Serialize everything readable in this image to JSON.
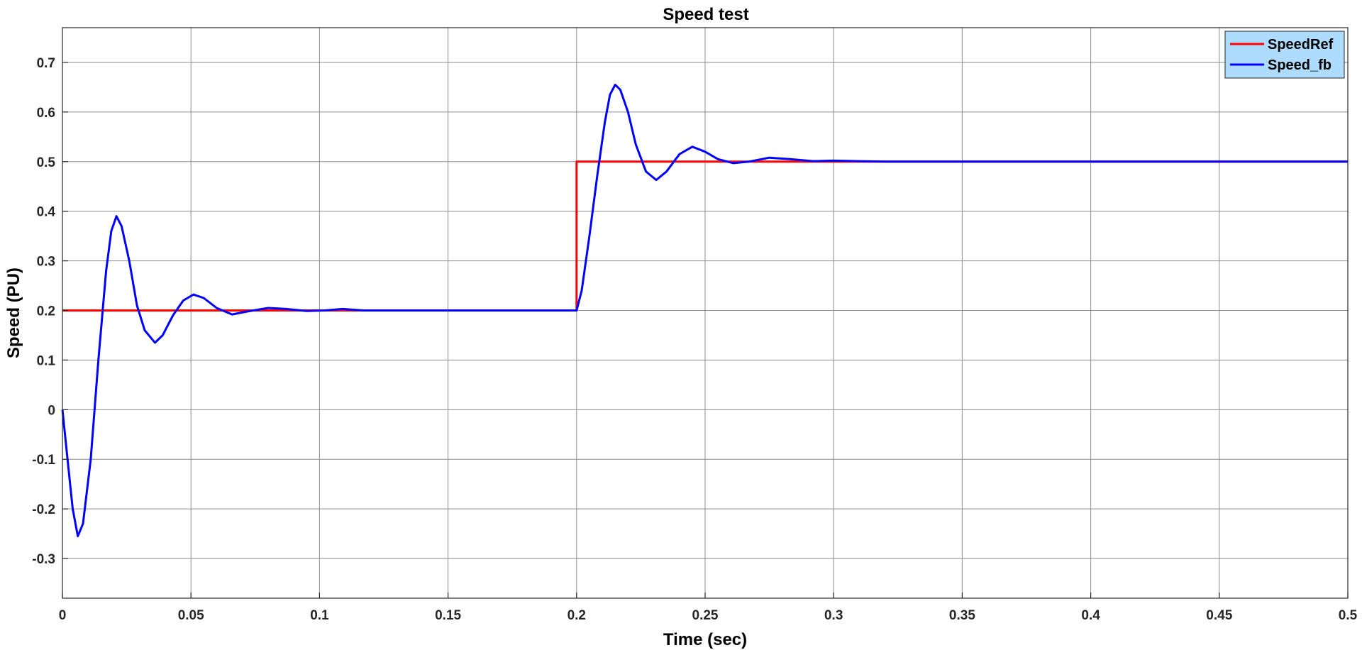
{
  "chart_data": {
    "type": "line",
    "title": "Speed test",
    "xlabel": "Time (sec)",
    "ylabel": "Speed (PU)",
    "xlim": [
      0,
      0.5
    ],
    "ylim": [
      -0.38,
      0.77
    ],
    "grid": true,
    "legend_position": "top-right",
    "x_ticks": [
      0,
      0.05,
      0.1,
      0.15,
      0.2,
      0.25,
      0.3,
      0.35,
      0.4,
      0.45,
      0.5
    ],
    "x_tick_labels": [
      "0",
      "0.05",
      "0.1",
      "0.15",
      "0.2",
      "0.25",
      "0.3",
      "0.35",
      "0.4",
      "0.45",
      "0.5"
    ],
    "y_ticks": [
      -0.3,
      -0.2,
      -0.1,
      0,
      0.1,
      0.2,
      0.3,
      0.4,
      0.5,
      0.6,
      0.7
    ],
    "y_tick_labels": [
      "-0.3",
      "-0.2",
      "-0.1",
      "0",
      "0.1",
      "0.2",
      "0.3",
      "0.4",
      "0.5",
      "0.6",
      "0.7"
    ],
    "series": [
      {
        "name": "SpeedRef",
        "color": "#ff0000",
        "x": [
          0,
          0.2,
          0.2,
          0.5
        ],
        "y": [
          0.2,
          0.2,
          0.5,
          0.5
        ]
      },
      {
        "name": "Speed_fb",
        "color": "#0000ff",
        "x": [
          0,
          0.002,
          0.004,
          0.006,
          0.008,
          0.011,
          0.014,
          0.017,
          0.019,
          0.021,
          0.023,
          0.026,
          0.029,
          0.032,
          0.036,
          0.039,
          0.043,
          0.047,
          0.051,
          0.055,
          0.06,
          0.066,
          0.072,
          0.08,
          0.087,
          0.095,
          0.102,
          0.109,
          0.117,
          0.13,
          0.15,
          0.17,
          0.19,
          0.2,
          0.202,
          0.205,
          0.208,
          0.211,
          0.213,
          0.215,
          0.217,
          0.22,
          0.223,
          0.227,
          0.231,
          0.235,
          0.24,
          0.245,
          0.25,
          0.255,
          0.261,
          0.267,
          0.275,
          0.283,
          0.292,
          0.3,
          0.31,
          0.32,
          0.35,
          0.4,
          0.45,
          0.5
        ],
        "y": [
          0,
          -0.1,
          -0.2,
          -0.255,
          -0.23,
          -0.1,
          0.1,
          0.28,
          0.36,
          0.39,
          0.37,
          0.3,
          0.21,
          0.16,
          0.135,
          0.15,
          0.19,
          0.22,
          0.232,
          0.225,
          0.205,
          0.192,
          0.198,
          0.205,
          0.203,
          0.199,
          0.2,
          0.203,
          0.2,
          0.2,
          0.2,
          0.2,
          0.2,
          0.2,
          0.24,
          0.35,
          0.47,
          0.58,
          0.635,
          0.655,
          0.645,
          0.6,
          0.535,
          0.48,
          0.463,
          0.48,
          0.515,
          0.53,
          0.52,
          0.505,
          0.497,
          0.5,
          0.508,
          0.505,
          0.501,
          0.502,
          0.501,
          0.5,
          0.5,
          0.5,
          0.5,
          0.5
        ]
      }
    ]
  }
}
